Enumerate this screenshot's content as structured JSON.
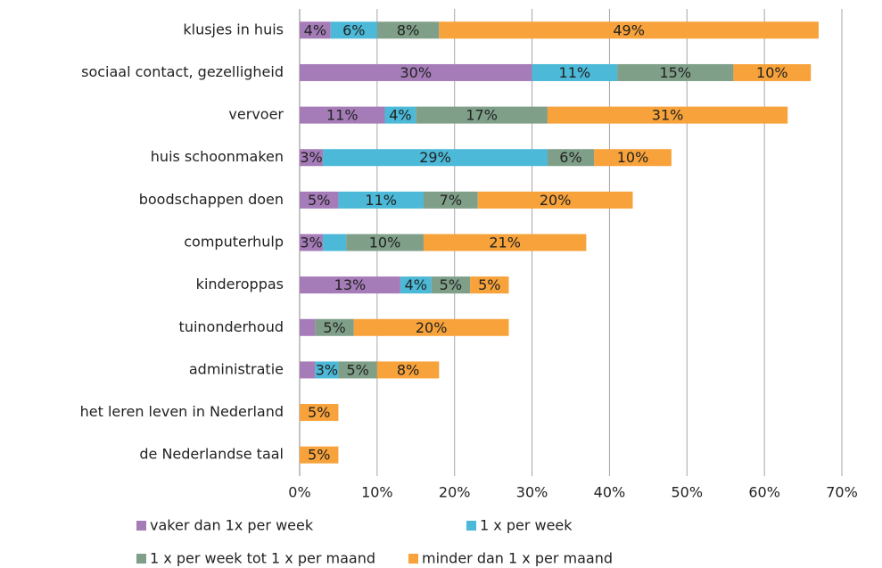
{
  "chart_data": {
    "type": "stacked_barh",
    "categories": [
      "klusjes in huis",
      "sociaal contact, gezelligheid",
      "vervoer",
      "huis schoonmaken",
      "boodschappen doen",
      "computerhulp",
      "kinderoppas",
      "tuinonderhoud",
      "administratie",
      "het leren leven in Nederland",
      "de Nederlandse taal"
    ],
    "series": [
      {
        "name": "vaker dan 1x per week",
        "color": "#a57cb8",
        "values": [
          4,
          30,
          11,
          3,
          5,
          3,
          13,
          2,
          2,
          0,
          0
        ],
        "value_labels": [
          "4%",
          "30%",
          "11%",
          "3%",
          "5%",
          "3%",
          "13%",
          null,
          null,
          null,
          null
        ]
      },
      {
        "name": "1 x per week",
        "color": "#4bb9d7",
        "values": [
          6,
          11,
          4,
          29,
          11,
          3,
          4,
          0,
          3,
          0,
          0
        ],
        "value_labels": [
          "6%",
          "11%",
          "4%",
          "29%",
          "11%",
          null,
          "4%",
          null,
          "3%",
          null,
          null
        ]
      },
      {
        "name": "1 x per week tot 1 x per maand",
        "color": "#7f9f89",
        "values": [
          8,
          15,
          17,
          6,
          7,
          10,
          5,
          5,
          5,
          0,
          0
        ],
        "value_labels": [
          "8%",
          "15%",
          "17%",
          "6%",
          "7%",
          "10%",
          "5%",
          "5%",
          "5%",
          null,
          null
        ]
      },
      {
        "name": "minder dan 1 x per maand",
        "color": "#f7a23a",
        "values": [
          49,
          10,
          31,
          10,
          20,
          21,
          5,
          20,
          8,
          5,
          5
        ],
        "value_labels": [
          "49%",
          "10%",
          "31%",
          "10%",
          "20%",
          "21%",
          "5%",
          "20%",
          "8%",
          "5%",
          "5%"
        ]
      }
    ],
    "xlim": [
      0,
      70
    ],
    "xticks": [
      {
        "value": 0,
        "label": "0%"
      },
      {
        "value": 10,
        "label": "10%"
      },
      {
        "value": 20,
        "label": "20%"
      },
      {
        "value": 30,
        "label": "30%"
      },
      {
        "value": 40,
        "label": "40%"
      },
      {
        "value": 50,
        "label": "50%"
      },
      {
        "value": 60,
        "label": "60%"
      },
      {
        "value": 70,
        "label": "70%"
      }
    ],
    "grid": true,
    "legend": "bottom"
  }
}
